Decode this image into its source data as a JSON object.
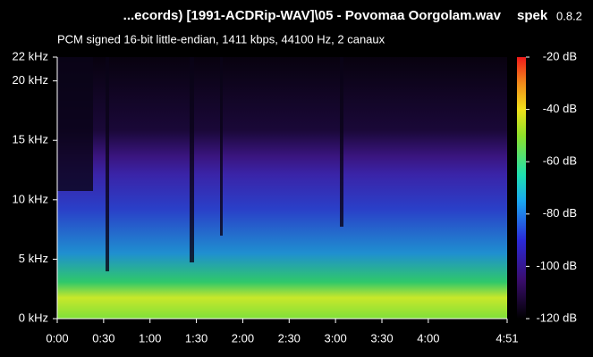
{
  "chart_data": {
    "type": "spectrogram",
    "title": "...ecords) [1991-ACDRip-WAV]\\05 - Povomaa Oorgolam.wav",
    "app_name": "spek",
    "app_version": "0.8.2",
    "subtitle": "PCM signed 16-bit little-endian, 1411 kbps, 44100 Hz, 2 canaux",
    "xlim": [
      0,
      291
    ],
    "xticks": [
      {
        "value": 0,
        "label": "0:00"
      },
      {
        "value": 30,
        "label": "0:30"
      },
      {
        "value": 60,
        "label": "1:00"
      },
      {
        "value": 90,
        "label": "1:30"
      },
      {
        "value": 120,
        "label": "2:00"
      },
      {
        "value": 150,
        "label": "2:30"
      },
      {
        "value": 180,
        "label": "3:00"
      },
      {
        "value": 210,
        "label": "3:30"
      },
      {
        "value": 240,
        "label": "4:00"
      },
      {
        "value": 291,
        "label": "4:51"
      }
    ],
    "ylim": [
      0,
      22
    ],
    "yticks": [
      {
        "value": 0,
        "label": "0 kHz"
      },
      {
        "value": 5,
        "label": "5 kHz"
      },
      {
        "value": 10,
        "label": "10 kHz"
      },
      {
        "value": 15,
        "label": "15 kHz"
      },
      {
        "value": 20,
        "label": "20 kHz"
      },
      {
        "value": 22,
        "label": "22 kHz"
      }
    ],
    "zlim": [
      -120,
      -20
    ],
    "zticks": [
      {
        "value": -20,
        "label": "-20 dB"
      },
      {
        "value": -40,
        "label": "-40 dB"
      },
      {
        "value": -60,
        "label": "-60 dB"
      },
      {
        "value": -80,
        "label": "-80 dB"
      },
      {
        "value": -100,
        "label": "-100 dB"
      },
      {
        "value": -120,
        "label": "-120 dB"
      }
    ]
  }
}
